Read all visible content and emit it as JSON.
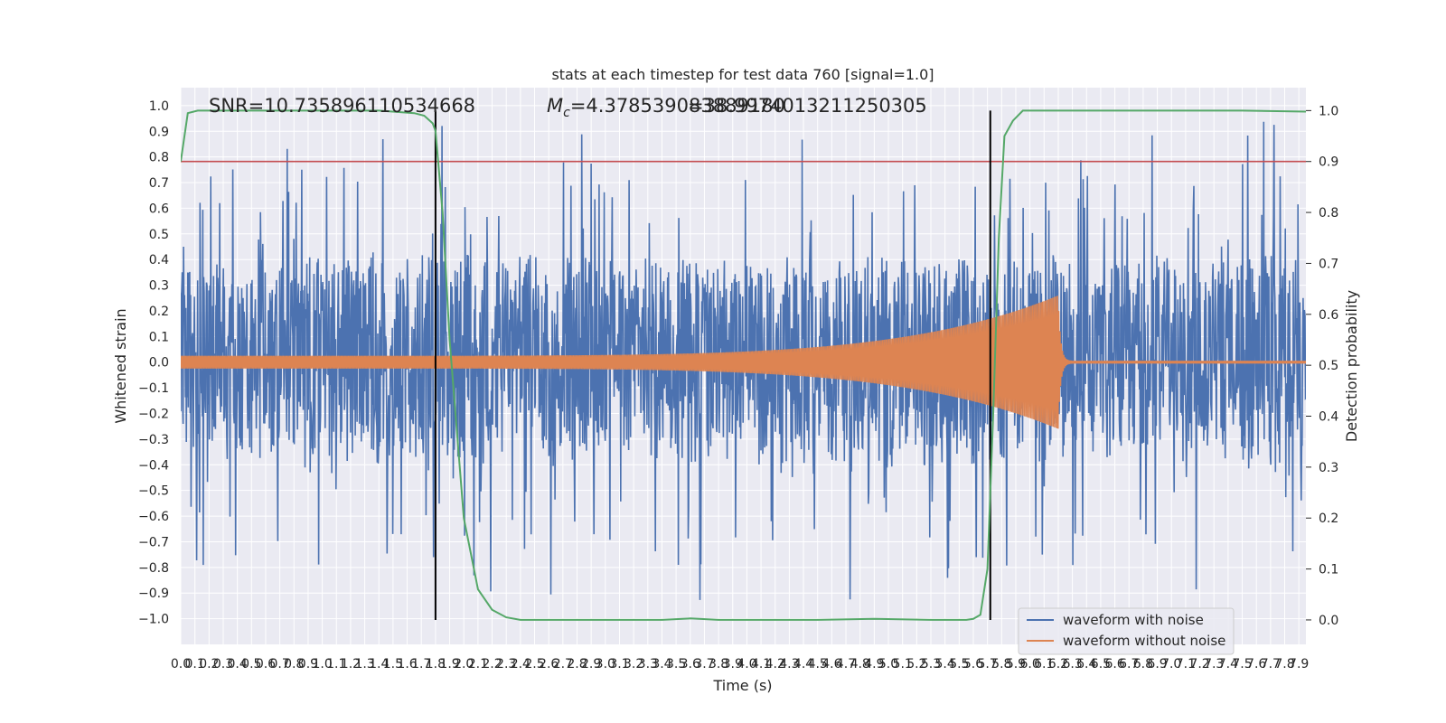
{
  "chart_data": {
    "type": "line",
    "title": "stats at each timestep for test data 760 [signal=1.0]",
    "xlabel": "Time (s)",
    "ylabel": "Whitened strain",
    "y2label": "Detection probability",
    "xlim": [
      0.0,
      7.95
    ],
    "ylim": [
      -1.1,
      1.07
    ],
    "y2lim": [
      -0.048,
      1.045
    ],
    "x_ticks": [
      0.0,
      0.1,
      0.2,
      0.3,
      0.4,
      0.5,
      0.6,
      0.7,
      0.8,
      0.9,
      1.0,
      1.1,
      1.2,
      1.3,
      1.4,
      1.5,
      1.6,
      1.7,
      1.8,
      1.9,
      2.0,
      2.1,
      2.2,
      2.3,
      2.4,
      2.5,
      2.6,
      2.7,
      2.8,
      2.9,
      3.0,
      3.1,
      3.2,
      3.3,
      3.4,
      3.5,
      3.6,
      3.7,
      3.8,
      3.9,
      4.0,
      4.1,
      4.2,
      4.3,
      4.4,
      4.5,
      4.6,
      4.7,
      4.8,
      4.9,
      5.0,
      5.1,
      5.2,
      5.3,
      5.4,
      5.5,
      5.6,
      5.7,
      5.8,
      5.9,
      6.0,
      6.1,
      6.2,
      6.3,
      6.4,
      6.5,
      6.6,
      6.7,
      6.8,
      6.9,
      7.0,
      7.1,
      7.2,
      7.3,
      7.4,
      7.5,
      7.6,
      7.7,
      7.8,
      7.9
    ],
    "y_ticks": [
      -1.0,
      -0.9,
      -0.8,
      -0.7,
      -0.6,
      -0.5,
      -0.4,
      -0.3,
      -0.2,
      -0.1,
      0.0,
      0.1,
      0.2,
      0.3,
      0.4,
      0.5,
      0.6,
      0.7,
      0.8,
      0.9,
      1.0
    ],
    "y2_ticks": [
      0.0,
      0.1,
      0.2,
      0.3,
      0.4,
      0.5,
      0.6,
      0.7,
      0.8,
      0.9,
      1.0
    ],
    "annotations": {
      "snr": "SNR=10.735896110534668",
      "mc_prefix": "M",
      "mc_sub": "c",
      "mc_value": "=4.378539083889180",
      "overlap": "=38.9974013211250305"
    },
    "threshold_probability": 0.9,
    "vertical_markers": [
      1.8,
      5.72
    ],
    "series": [
      {
        "name": "waveform with noise",
        "color": "#4c72b0",
        "noise_band": [
          -0.4,
          0.38
        ],
        "peak_max": 0.97,
        "peak_min": -1.0
      },
      {
        "name": "waveform without noise",
        "color": "#dd8452",
        "start_amp": 0.025,
        "merger_time": 6.2,
        "merger_amp": 0.26,
        "ringdown_amp": 0.005
      },
      {
        "name": "detection probability",
        "color": "#55a868",
        "x": [
          0.0,
          0.05,
          0.12,
          0.3,
          0.6,
          1.0,
          1.4,
          1.65,
          1.72,
          1.78,
          1.8,
          1.85,
          1.9,
          2.0,
          2.1,
          2.2,
          2.3,
          2.4,
          2.6,
          3.0,
          3.4,
          3.6,
          3.8,
          4.0,
          4.5,
          4.9,
          5.3,
          5.55,
          5.6,
          5.65,
          5.7,
          5.74,
          5.78,
          5.82,
          5.88,
          5.95,
          6.5,
          7.0,
          7.5,
          7.95
        ],
        "y": [
          0.9,
          0.995,
          1.0,
          1.0,
          1.0,
          1.0,
          1.0,
          0.995,
          0.99,
          0.975,
          0.96,
          0.8,
          0.55,
          0.2,
          0.06,
          0.02,
          0.005,
          0.0,
          0.0,
          0.0,
          0.0,
          0.003,
          0.0,
          0.0,
          0.0,
          0.002,
          0.0,
          0.0,
          0.002,
          0.01,
          0.1,
          0.4,
          0.75,
          0.95,
          0.98,
          1.0,
          1.0,
          1.0,
          1.0,
          0.998
        ]
      }
    ],
    "legend": {
      "position": "bottom-right",
      "entries": [
        "waveform with noise",
        "waveform without noise"
      ]
    }
  }
}
